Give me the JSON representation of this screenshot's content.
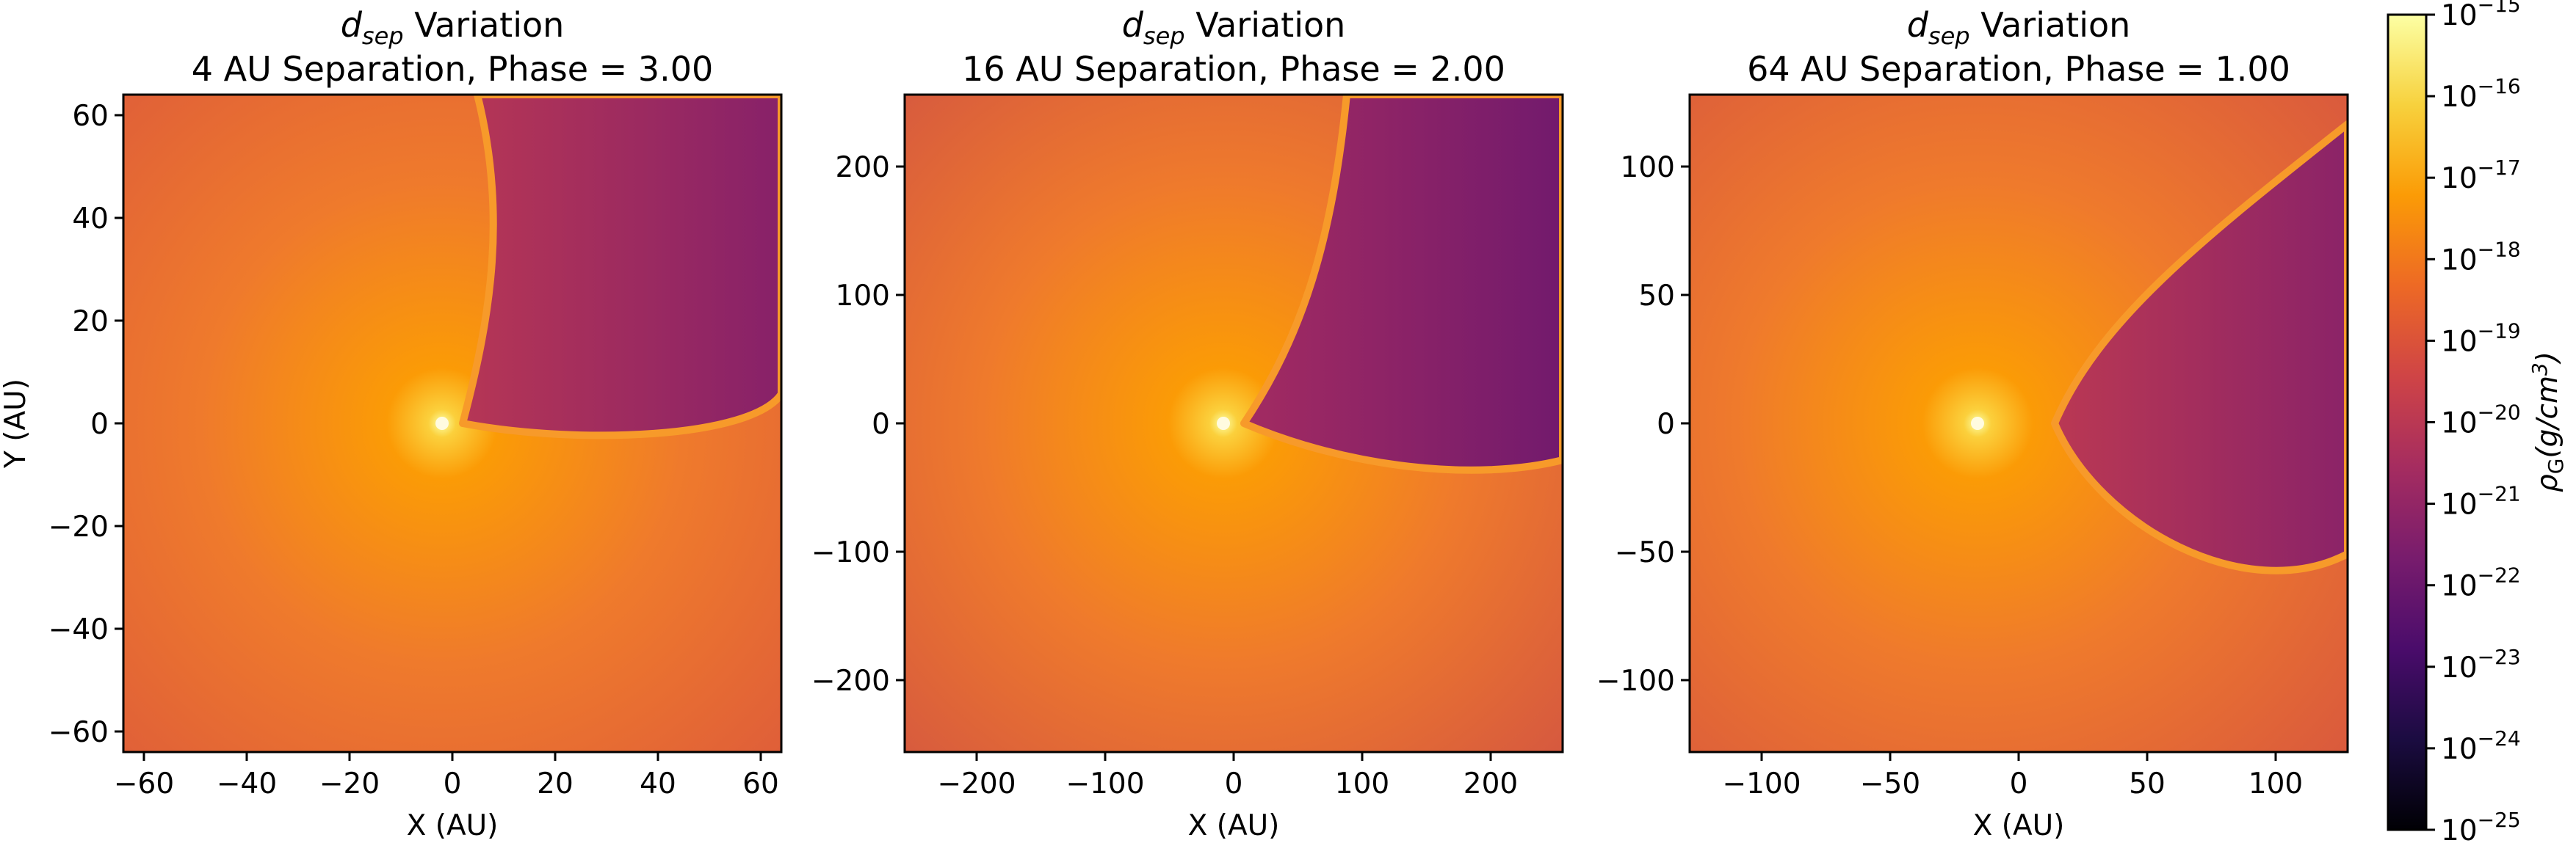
{
  "chart_data": [
    {
      "type": "heatmap",
      "title_symbol": "d",
      "title_symbol_sub": "sep",
      "title_rest": " Variation",
      "subtitle": "4 AU Separation, Phase = 3.00",
      "xlabel": "X (AU)",
      "ylabel": "Y (AU)",
      "xlim": [
        -64,
        64
      ],
      "ylim": [
        -64,
        64
      ],
      "xticks": [
        -60,
        -40,
        -20,
        0,
        20,
        40,
        60
      ],
      "yticks": [
        -60,
        -40,
        -20,
        0,
        20,
        40,
        60
      ],
      "xtick_labels": [
        "−60",
        "−40",
        "−20",
        "0",
        "20",
        "40",
        "60"
      ],
      "ytick_labels": [
        "−60",
        "−40",
        "−20",
        "0",
        "20",
        "40",
        "60"
      ],
      "star_position": [
        -2,
        0
      ],
      "shock_apex_x": 2,
      "background_log_density": -19.4,
      "wake_log_density": -21.3
    },
    {
      "type": "heatmap",
      "title_symbol": "d",
      "title_symbol_sub": "sep",
      "title_rest": " Variation",
      "subtitle": "16 AU Separation, Phase = 2.00",
      "xlabel": "X (AU)",
      "ylabel": "",
      "xlim": [
        -256,
        256
      ],
      "ylim": [
        -256,
        256
      ],
      "xticks": [
        -200,
        -100,
        0,
        100,
        200
      ],
      "yticks": [
        -200,
        -100,
        0,
        100,
        200
      ],
      "xtick_labels": [
        "−200",
        "−100",
        "0",
        "100",
        "200"
      ],
      "ytick_labels": [
        "−200",
        "−100",
        "0",
        "100",
        "200"
      ],
      "star_position": [
        -8,
        0
      ],
      "shock_apex_x": 8,
      "background_log_density": -19.9,
      "wake_log_density": -21.8
    },
    {
      "type": "heatmap",
      "title_symbol": "d",
      "title_symbol_sub": "sep",
      "title_rest": " Variation",
      "subtitle": "64 AU Separation, Phase = 1.00",
      "xlabel": "X (AU)",
      "ylabel": "",
      "xlim": [
        -128,
        128
      ],
      "ylim": [
        -128,
        128
      ],
      "xticks": [
        -100,
        -50,
        0,
        50,
        100
      ],
      "yticks": [
        -100,
        -50,
        0,
        50,
        100
      ],
      "xtick_labels": [
        "−100",
        "−50",
        "0",
        "50",
        "100"
      ],
      "ytick_labels": [
        "−100",
        "−50",
        "0",
        "50",
        "100"
      ],
      "star_position": [
        -16,
        0
      ],
      "shock_apex_x": 14,
      "background_log_density": -19.6,
      "wake_log_density": -21.2
    }
  ],
  "colorbar": {
    "colormap": "inferno",
    "scale": "log",
    "range_exponents": [
      -25,
      -15
    ],
    "tick_exponents": [
      -15,
      -16,
      -17,
      -18,
      -19,
      -20,
      -21,
      -22,
      -23,
      -24,
      -25
    ],
    "tick_base": "10",
    "tick_exponent_labels": [
      "−15",
      "−16",
      "−17",
      "−18",
      "−19",
      "−20",
      "−21",
      "−22",
      "−23",
      "−24",
      "−25"
    ],
    "label_symbol": "ρ",
    "label_symbol_sub": "G",
    "label_units": "(g/cm",
    "label_units_sup": "3",
    "label_units_close": ")"
  },
  "colors": {
    "inferno": [
      "#000004",
      "#1b0c41",
      "#4a0c6b",
      "#781c6d",
      "#a52c60",
      "#cf4446",
      "#ed6925",
      "#fb9b06",
      "#f7d13d",
      "#fcffa4"
    ]
  }
}
